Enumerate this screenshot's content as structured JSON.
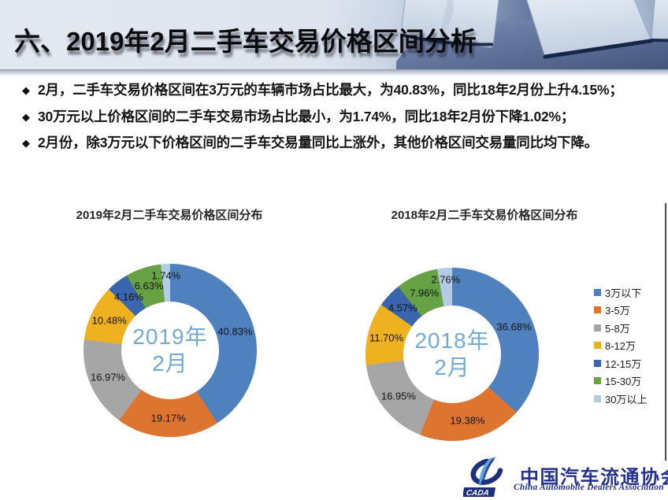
{
  "header": {
    "title": "六、2019年2月二手车交易价格区间分析"
  },
  "bullet_marker": "◆",
  "bullets": [
    "2月，二手车交易价格区间在3万元的车辆市场占比最大，为40.83%，同比18年2月份上升4.15%；",
    "30万元以上价格区间的二手车交易市场占比最小，为1.74%，同比18年2月份下降1.02%；",
    "2月份，除3万元以下价格区间的二手车交易量同比上涨外，其他价格区间交易量同比均下降。"
  ],
  "chart_data": [
    {
      "type": "pie",
      "subtype": "donut",
      "title": "2019年2月二手车交易价格区间分布",
      "center_label": [
        "2019年",
        "2月"
      ],
      "categories": [
        "3万以下",
        "3-5万",
        "5-8万",
        "8-12万",
        "12-15万",
        "15-30万",
        "30万以上"
      ],
      "values": [
        40.83,
        19.17,
        16.97,
        10.48,
        4.16,
        6.63,
        1.74
      ],
      "labels": [
        "40.83%",
        "19.17%",
        "16.97%",
        "10.48%",
        "4.16%",
        "6.63%",
        "1.74%"
      ],
      "colors": [
        "#4e81bd",
        "#dd7531",
        "#a6a6a6",
        "#eeb120",
        "#3a66ae",
        "#66a144",
        "#b3cce6"
      ],
      "start_angle_deg": 0,
      "direction": "clockwise",
      "legend_position": "none"
    },
    {
      "type": "pie",
      "subtype": "donut",
      "title": "2018年2月二手车交易价格区间分布",
      "center_label": [
        "2018年",
        "2月"
      ],
      "categories": [
        "3万以下",
        "3-5万",
        "5-8万",
        "8-12万",
        "12-15万",
        "15-30万",
        "30万以上"
      ],
      "values": [
        36.68,
        19.38,
        16.95,
        11.7,
        4.57,
        7.96,
        2.76
      ],
      "labels": [
        "36.68%",
        "19.38%",
        "16.95%",
        "11.70%",
        "4.57%",
        "7.96%",
        "2.76%"
      ],
      "colors": [
        "#4e81bd",
        "#dd7531",
        "#a6a6a6",
        "#eeb120",
        "#3a66ae",
        "#66a144",
        "#b3cce6"
      ],
      "start_angle_deg": 0,
      "direction": "clockwise",
      "legend_position": "right"
    }
  ],
  "legend": {
    "items": [
      {
        "label": "3万以下",
        "color": "#4e81bd"
      },
      {
        "label": "3-5万",
        "color": "#dd7531"
      },
      {
        "label": "5-8万",
        "color": "#a6a6a6"
      },
      {
        "label": "8-12万",
        "color": "#eeb120"
      },
      {
        "label": "12-15万",
        "color": "#3a66ae"
      },
      {
        "label": "15-30万",
        "color": "#66a144"
      },
      {
        "label": "30万以上",
        "color": "#b3cce6"
      }
    ]
  },
  "footer_logo": {
    "acronym": "CADA",
    "org_cn": "中国汽车流通协会",
    "org_en": "China Automobile Dealers Association"
  }
}
